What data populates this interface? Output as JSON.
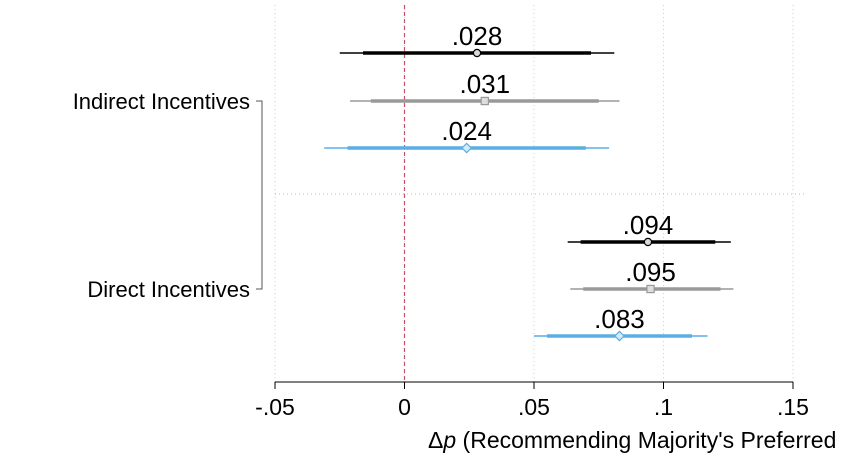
{
  "chart_data": {
    "type": "coefficient-plot",
    "xlabel_prefix": "Δ",
    "xlabel_var": "p",
    "xlabel_rest": " (Recommending Majority's Preferred Policy",
    "xlim": [
      -0.05,
      0.15
    ],
    "x_ticks": [
      {
        "value": -0.05,
        "label": "-.05"
      },
      {
        "value": 0,
        "label": "0"
      },
      {
        "value": 0.05,
        "label": ".05"
      },
      {
        "value": 0.1,
        "label": ".1"
      },
      {
        "value": 0.15,
        "label": ".15"
      }
    ],
    "reference_line": 0,
    "grid": true,
    "groups": [
      {
        "label": "Indirect Incentives",
        "estimates": [
          {
            "value": 0.028,
            "label": ".028",
            "ci90": [
              -0.016,
              0.072
            ],
            "ci95": [
              -0.025,
              0.081
            ],
            "color": "#000000",
            "marker": "circle"
          },
          {
            "value": 0.031,
            "label": ".031",
            "ci90": [
              -0.013,
              0.075
            ],
            "ci95": [
              -0.021,
              0.083
            ],
            "color": "#999999",
            "marker": "square"
          },
          {
            "value": 0.024,
            "label": ".024",
            "ci90": [
              -0.022,
              0.07
            ],
            "ci95": [
              -0.031,
              0.079
            ],
            "color": "#5aaee4",
            "marker": "diamond"
          }
        ]
      },
      {
        "label": "Direct Incentives",
        "estimates": [
          {
            "value": 0.094,
            "label": ".094",
            "ci90": [
              0.068,
              0.12
            ],
            "ci95": [
              0.063,
              0.126
            ],
            "color": "#000000",
            "marker": "circle"
          },
          {
            "value": 0.095,
            "label": ".095",
            "ci90": [
              0.069,
              0.122
            ],
            "ci95": [
              0.064,
              0.127
            ],
            "color": "#999999",
            "marker": "square"
          },
          {
            "value": 0.083,
            "label": ".083",
            "ci90": [
              0.055,
              0.111
            ],
            "ci95": [
              0.05,
              0.117
            ],
            "color": "#5aaee4",
            "marker": "diamond"
          }
        ]
      }
    ],
    "colors": {
      "reference_line": "#c8506a",
      "grid": "#cfcfcf",
      "axis": "#000000",
      "bracket": "#555555"
    }
  }
}
